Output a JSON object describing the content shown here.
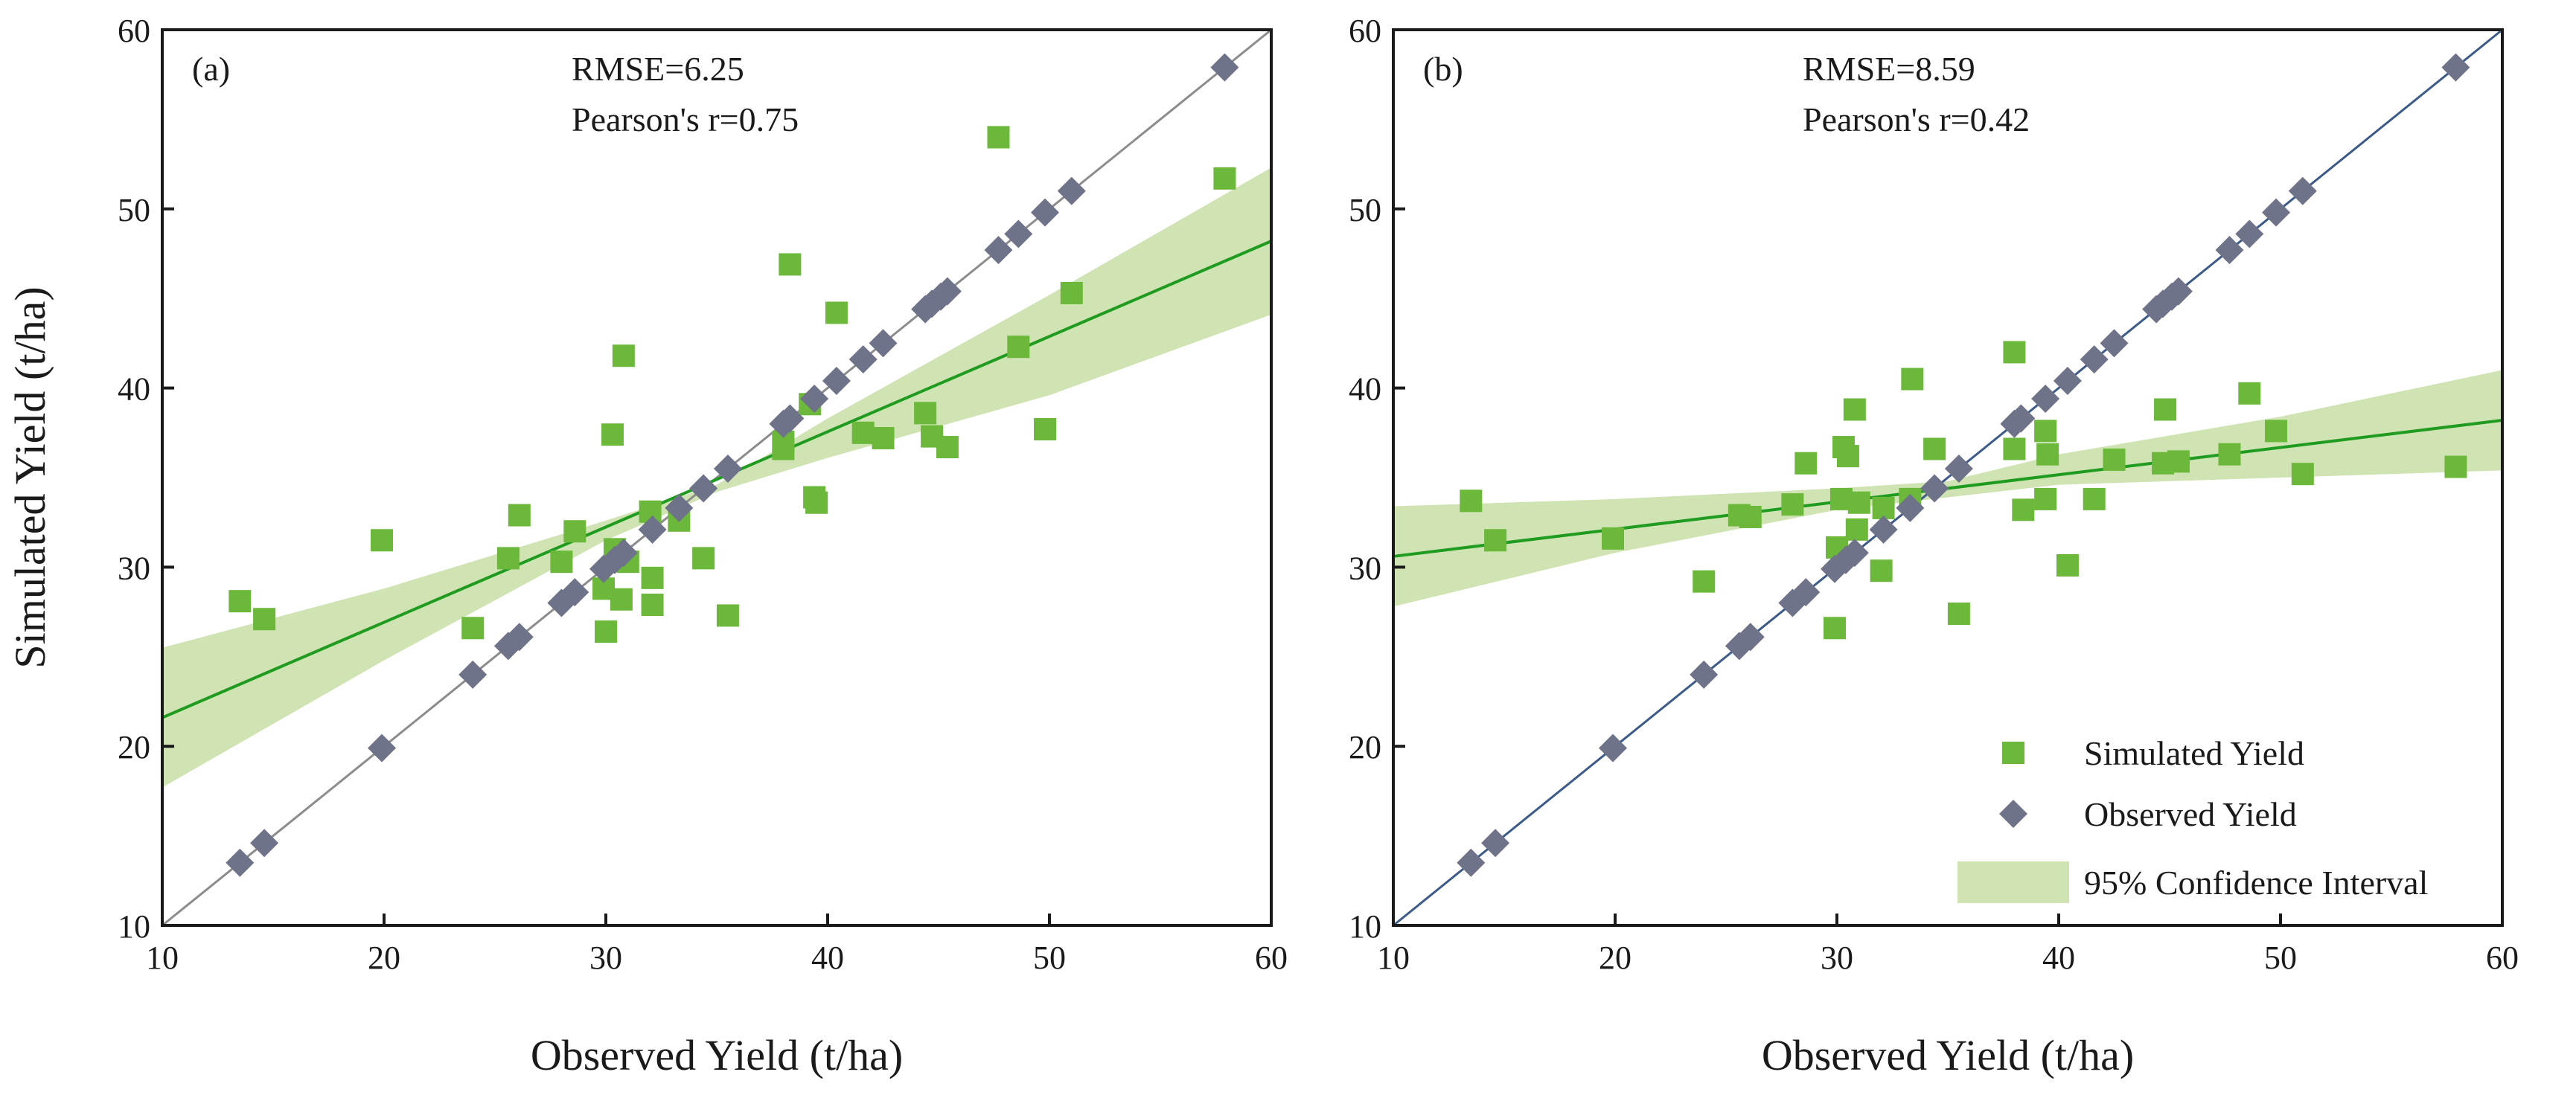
{
  "colors": {
    "simulated": "#6bb83a",
    "observed": "#6f7389",
    "fit_line": "#1f9b1f",
    "band": "#cfe3b3",
    "identity_a": "#8c8c8c",
    "identity_b": "#3c5a8a"
  },
  "chart_data": [
    {
      "type": "scatter",
      "panel_label": "(a)",
      "xlabel": "Observed Yield (t/ha)",
      "ylabel": "Simulated Yield (t/ha)",
      "xlim": [
        10,
        60
      ],
      "ylim": [
        10,
        60
      ],
      "xticks": [
        "10",
        "20",
        "30",
        "40",
        "50",
        "60"
      ],
      "yticks": [
        "10",
        "20",
        "30",
        "40",
        "50",
        "60"
      ],
      "annotations": [
        "RMSE=6.25",
        "Pearson's r=0.75"
      ],
      "fit_line": {
        "x": [
          10,
          60
        ],
        "y": [
          21.6,
          48.2
        ]
      },
      "confidence_band": {
        "x": [
          10,
          20,
          30,
          35,
          40,
          50,
          60
        ],
        "lower": [
          17.7,
          24.8,
          31.5,
          34.2,
          36.1,
          39.6,
          44.1
        ],
        "upper": [
          25.5,
          28.8,
          32.6,
          34.6,
          38.3,
          45.2,
          52.3
        ]
      },
      "series": [
        {
          "name": "Simulated Yield",
          "marker": "square",
          "points": [
            [
              13.5,
              28.1
            ],
            [
              14.6,
              27.1
            ],
            [
              19.9,
              31.5
            ],
            [
              24.0,
              26.6
            ],
            [
              25.6,
              30.5
            ],
            [
              26.1,
              32.9
            ],
            [
              28.0,
              30.3
            ],
            [
              28.6,
              32.0
            ],
            [
              29.9,
              28.8
            ],
            [
              30.0,
              26.4
            ],
            [
              30.3,
              37.4
            ],
            [
              30.4,
              31.0
            ],
            [
              30.7,
              28.2
            ],
            [
              30.8,
              41.8
            ],
            [
              31.0,
              30.3
            ],
            [
              32.0,
              33.1
            ],
            [
              32.1,
              29.4
            ],
            [
              32.1,
              27.9
            ],
            [
              33.3,
              32.6
            ],
            [
              34.4,
              30.5
            ],
            [
              35.5,
              27.3
            ],
            [
              38.0,
              37.0
            ],
            [
              38.0,
              36.6
            ],
            [
              38.3,
              46.9
            ],
            [
              39.2,
              39.1
            ],
            [
              39.4,
              33.9
            ],
            [
              39.5,
              33.6
            ],
            [
              40.4,
              44.2
            ],
            [
              41.6,
              37.5
            ],
            [
              42.5,
              37.2
            ],
            [
              44.4,
              38.6
            ],
            [
              44.7,
              37.3
            ],
            [
              45.4,
              36.7
            ],
            [
              47.7,
              54.0
            ],
            [
              48.6,
              42.3
            ],
            [
              49.8,
              37.7
            ],
            [
              51.0,
              45.3
            ],
            [
              57.9,
              51.7
            ]
          ]
        },
        {
          "name": "Observed Yield",
          "marker": "diamond",
          "points": [
            [
              13.5,
              13.5
            ],
            [
              14.6,
              14.6
            ],
            [
              19.9,
              19.9
            ],
            [
              24.0,
              24.0
            ],
            [
              25.6,
              25.6
            ],
            [
              26.1,
              26.1
            ],
            [
              28.0,
              28.0
            ],
            [
              28.6,
              28.6
            ],
            [
              29.9,
              29.9
            ],
            [
              30.4,
              30.4
            ],
            [
              30.8,
              30.8
            ],
            [
              32.1,
              32.1
            ],
            [
              33.3,
              33.3
            ],
            [
              34.4,
              34.4
            ],
            [
              35.5,
              35.5
            ],
            [
              38.0,
              38.0
            ],
            [
              38.3,
              38.3
            ],
            [
              39.4,
              39.4
            ],
            [
              40.4,
              40.4
            ],
            [
              41.6,
              41.6
            ],
            [
              42.5,
              42.5
            ],
            [
              44.4,
              44.4
            ],
            [
              44.7,
              44.7
            ],
            [
              45.1,
              45.1
            ],
            [
              45.4,
              45.4
            ],
            [
              47.7,
              47.7
            ],
            [
              48.6,
              48.6
            ],
            [
              49.8,
              49.8
            ],
            [
              51.0,
              51.0
            ],
            [
              57.9,
              57.9
            ]
          ]
        }
      ]
    },
    {
      "type": "scatter",
      "panel_label": "(b)",
      "xlabel": "Observed Yield (t/ha)",
      "ylabel": "",
      "xlim": [
        10,
        60
      ],
      "ylim": [
        10,
        60
      ],
      "xticks": [
        "10",
        "20",
        "30",
        "40",
        "50",
        "60"
      ],
      "yticks": [
        "10",
        "20",
        "30",
        "40",
        "50",
        "60"
      ],
      "annotations": [
        "RMSE=8.59",
        "Pearson's r=0.42"
      ],
      "fit_line": {
        "x": [
          10,
          60
        ],
        "y": [
          30.6,
          38.2
        ]
      },
      "confidence_band": {
        "x": [
          10,
          20,
          30,
          35,
          40,
          50,
          60
        ],
        "lower": [
          27.8,
          30.8,
          33.2,
          33.9,
          34.6,
          35.0,
          35.4
        ],
        "upper": [
          33.4,
          33.8,
          34.4,
          34.8,
          36.3,
          38.4,
          41.0
        ]
      },
      "legend": {
        "position": "bottom-right",
        "entries": [
          "Simulated Yield",
          "Observed Yield",
          "95% Confidence Interval"
        ]
      },
      "series": [
        {
          "name": "Simulated Yield",
          "marker": "square",
          "points": [
            [
              13.5,
              33.7
            ],
            [
              14.6,
              31.5
            ],
            [
              19.9,
              31.6
            ],
            [
              24.0,
              29.2
            ],
            [
              25.6,
              32.9
            ],
            [
              26.1,
              32.8
            ],
            [
              28.0,
              33.5
            ],
            [
              28.6,
              35.8
            ],
            [
              29.9,
              26.6
            ],
            [
              30.0,
              31.1
            ],
            [
              30.2,
              33.8
            ],
            [
              30.3,
              36.7
            ],
            [
              30.5,
              36.2
            ],
            [
              30.8,
              38.8
            ],
            [
              30.9,
              32.1
            ],
            [
              31.0,
              33.6
            ],
            [
              32.0,
              29.8
            ],
            [
              32.1,
              33.3
            ],
            [
              33.3,
              33.8
            ],
            [
              33.4,
              40.5
            ],
            [
              35.5,
              27.4
            ],
            [
              34.4,
              36.6
            ],
            [
              38.0,
              42.0
            ],
            [
              38.0,
              36.6
            ],
            [
              38.4,
              33.2
            ],
            [
              39.4,
              37.6
            ],
            [
              39.5,
              36.3
            ],
            [
              39.4,
              33.8
            ],
            [
              40.4,
              30.1
            ],
            [
              41.6,
              33.8
            ],
            [
              42.5,
              36.0
            ],
            [
              44.7,
              35.8
            ],
            [
              44.8,
              38.8
            ],
            [
              45.4,
              35.9
            ],
            [
              47.7,
              36.3
            ],
            [
              48.6,
              39.7
            ],
            [
              49.8,
              37.6
            ],
            [
              51.0,
              35.2
            ],
            [
              57.9,
              35.6
            ]
          ]
        },
        {
          "name": "Observed Yield",
          "marker": "diamond",
          "points": [
            [
              13.5,
              13.5
            ],
            [
              14.6,
              14.6
            ],
            [
              19.9,
              19.9
            ],
            [
              24.0,
              24.0
            ],
            [
              25.6,
              25.6
            ],
            [
              26.1,
              26.1
            ],
            [
              28.0,
              28.0
            ],
            [
              28.6,
              28.6
            ],
            [
              29.9,
              29.9
            ],
            [
              30.4,
              30.4
            ],
            [
              30.8,
              30.8
            ],
            [
              32.1,
              32.1
            ],
            [
              33.3,
              33.3
            ],
            [
              34.4,
              34.4
            ],
            [
              35.5,
              35.5
            ],
            [
              38.0,
              38.0
            ],
            [
              38.3,
              38.3
            ],
            [
              39.4,
              39.4
            ],
            [
              40.4,
              40.4
            ],
            [
              41.6,
              41.6
            ],
            [
              42.5,
              42.5
            ],
            [
              44.4,
              44.4
            ],
            [
              44.7,
              44.7
            ],
            [
              45.1,
              45.1
            ],
            [
              45.4,
              45.4
            ],
            [
              47.7,
              47.7
            ],
            [
              48.6,
              48.6
            ],
            [
              49.8,
              49.8
            ],
            [
              51.0,
              51.0
            ],
            [
              57.9,
              57.9
            ]
          ]
        }
      ]
    }
  ]
}
